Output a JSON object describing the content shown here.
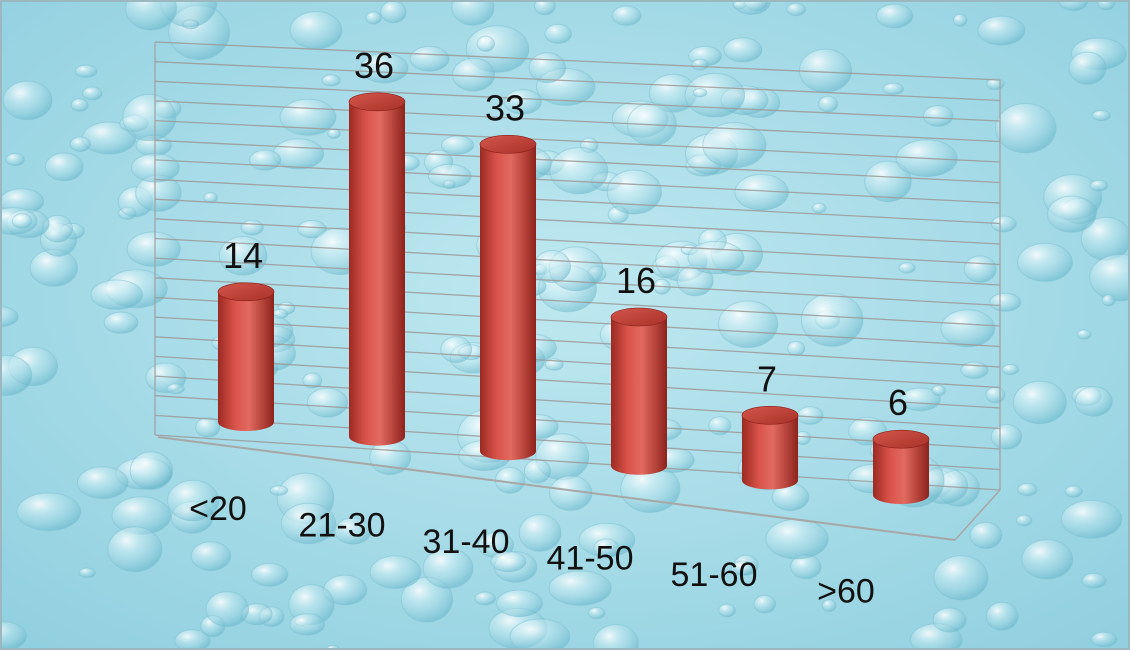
{
  "chart_data": {
    "type": "bar",
    "title": "",
    "xlabel": "",
    "ylabel": "",
    "categories": [
      "<20",
      "21-30",
      "31-40",
      "41-50",
      "51-60",
      ">60"
    ],
    "values": [
      14,
      36,
      33,
      16,
      7,
      6
    ],
    "ylim": [
      0,
      40
    ],
    "grid": true,
    "legend": "none",
    "style": {
      "bar_shape": "cylinder",
      "bar_color": "#c0392b",
      "background": "water-drops",
      "background_color": "#a8dbe6"
    }
  }
}
